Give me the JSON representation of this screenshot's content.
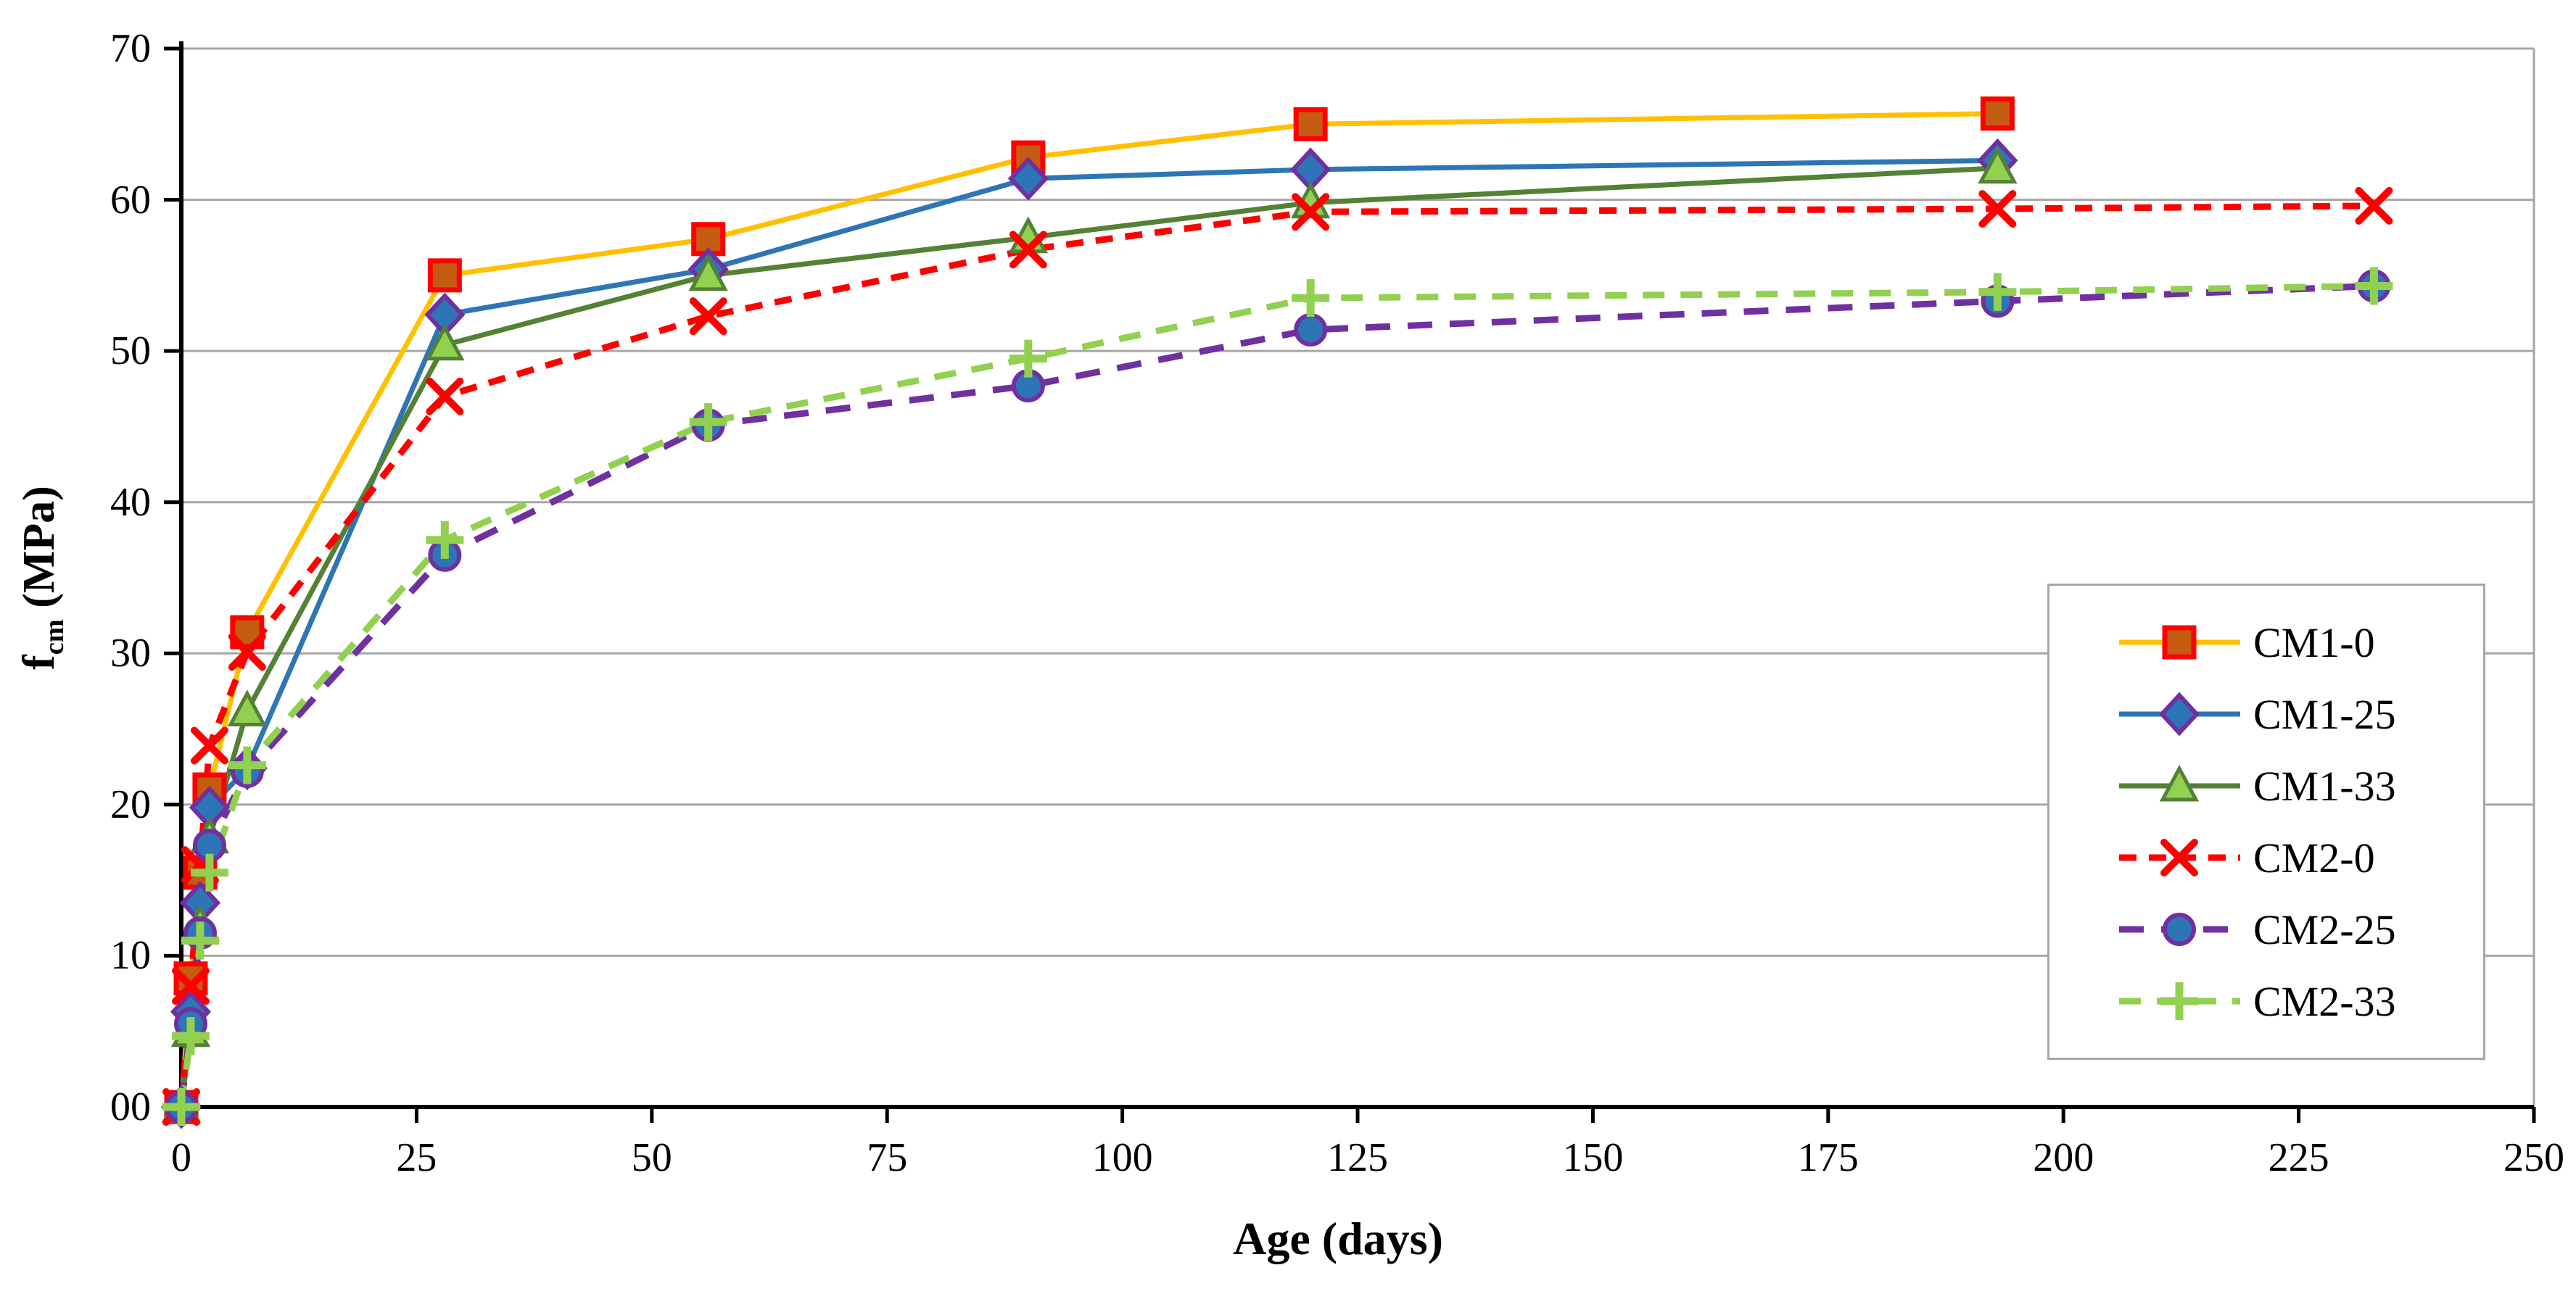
{
  "page": {
    "background": "#ffffff"
  },
  "chart_data": {
    "type": "line",
    "title": "",
    "xlabel": "Age (days)",
    "ylabel": {
      "symbol": "f",
      "subscript": "cm",
      "unit": " (MPa)"
    },
    "xlim": [
      0,
      250
    ],
    "ylim": [
      0,
      70
    ],
    "x_ticks": [
      0,
      25,
      50,
      75,
      100,
      125,
      150,
      175,
      200,
      225,
      250
    ],
    "y_ticks": [
      {
        "value": 0,
        "label": "00"
      },
      {
        "value": 10,
        "label": "10"
      },
      {
        "value": 20,
        "label": "20"
      },
      {
        "value": 30,
        "label": "30"
      },
      {
        "value": 40,
        "label": "40"
      },
      {
        "value": 50,
        "label": "50"
      },
      {
        "value": 60,
        "label": "60"
      },
      {
        "value": 70,
        "label": "70"
      }
    ],
    "grid": {
      "horizontal": true,
      "vertical": false,
      "color": "#A6A6A6"
    },
    "axis_color": "#000000",
    "legend": {
      "position": "middle-right",
      "border_color": "#A6A6A6",
      "background": "#FFFFFF"
    },
    "series": [
      {
        "name": "CM1-0",
        "line_color": "#FFC000",
        "line_style": "solid",
        "marker": {
          "shape": "square",
          "fill": "#C55A11",
          "edge": "#FF0000"
        },
        "x": [
          0,
          1,
          2,
          3,
          7,
          28,
          56,
          90,
          120,
          193
        ],
        "y": [
          0,
          8.5,
          15.5,
          21.0,
          31.4,
          55.0,
          57.4,
          62.8,
          65.0,
          65.7
        ]
      },
      {
        "name": "CM1-25",
        "line_color": "#2E75B6",
        "line_style": "solid",
        "marker": {
          "shape": "diamond",
          "fill": "#2E75B6",
          "edge": "#7030A0"
        },
        "x": [
          0,
          1,
          2,
          3,
          7,
          28,
          56,
          90,
          120,
          193
        ],
        "y": [
          0,
          6.3,
          13.5,
          19.8,
          22.4,
          52.4,
          55.4,
          61.4,
          62.0,
          62.6
        ]
      },
      {
        "name": "CM1-33",
        "line_color": "#538135",
        "line_style": "solid",
        "marker": {
          "shape": "triangle",
          "fill": "#92D050",
          "edge": "#538135"
        },
        "x": [
          0,
          1,
          2,
          3,
          7,
          28,
          56,
          90,
          120,
          193
        ],
        "y": [
          0,
          5.0,
          12.0,
          17.8,
          26.2,
          50.4,
          55.0,
          57.5,
          59.8,
          62.1
        ]
      },
      {
        "name": "CM2-0",
        "line_color": "#FF0000",
        "line_style": "dashed",
        "marker": {
          "shape": "x",
          "fill": "none",
          "edge": "#FF0000"
        },
        "x": [
          0,
          1,
          2,
          3,
          7,
          28,
          56,
          90,
          120,
          193,
          233
        ],
        "y": [
          0,
          8.0,
          16.0,
          23.9,
          30.1,
          47.0,
          52.3,
          56.7,
          59.2,
          59.4,
          59.6
        ]
      },
      {
        "name": "CM2-25",
        "line_color": "#7030A0",
        "line_style": "dashed",
        "marker": {
          "shape": "circle",
          "fill": "#2E75B6",
          "edge": "#7030A0"
        },
        "x": [
          0,
          1,
          2,
          3,
          7,
          28,
          56,
          90,
          120,
          193,
          233
        ],
        "y": [
          0,
          5.5,
          11.5,
          17.3,
          22.2,
          36.5,
          45.1,
          47.7,
          51.4,
          53.3,
          54.3
        ]
      },
      {
        "name": "CM2-33",
        "line_color": "#92D050",
        "line_style": "dashed",
        "marker": {
          "shape": "plus",
          "fill": "none",
          "edge": "#92D050"
        },
        "x": [
          0,
          1,
          2,
          3,
          7,
          28,
          56,
          90,
          120,
          193,
          233
        ],
        "y": [
          0,
          4.7,
          11.0,
          15.5,
          22.6,
          37.5,
          45.3,
          49.5,
          53.5,
          53.9,
          54.3
        ]
      }
    ]
  }
}
